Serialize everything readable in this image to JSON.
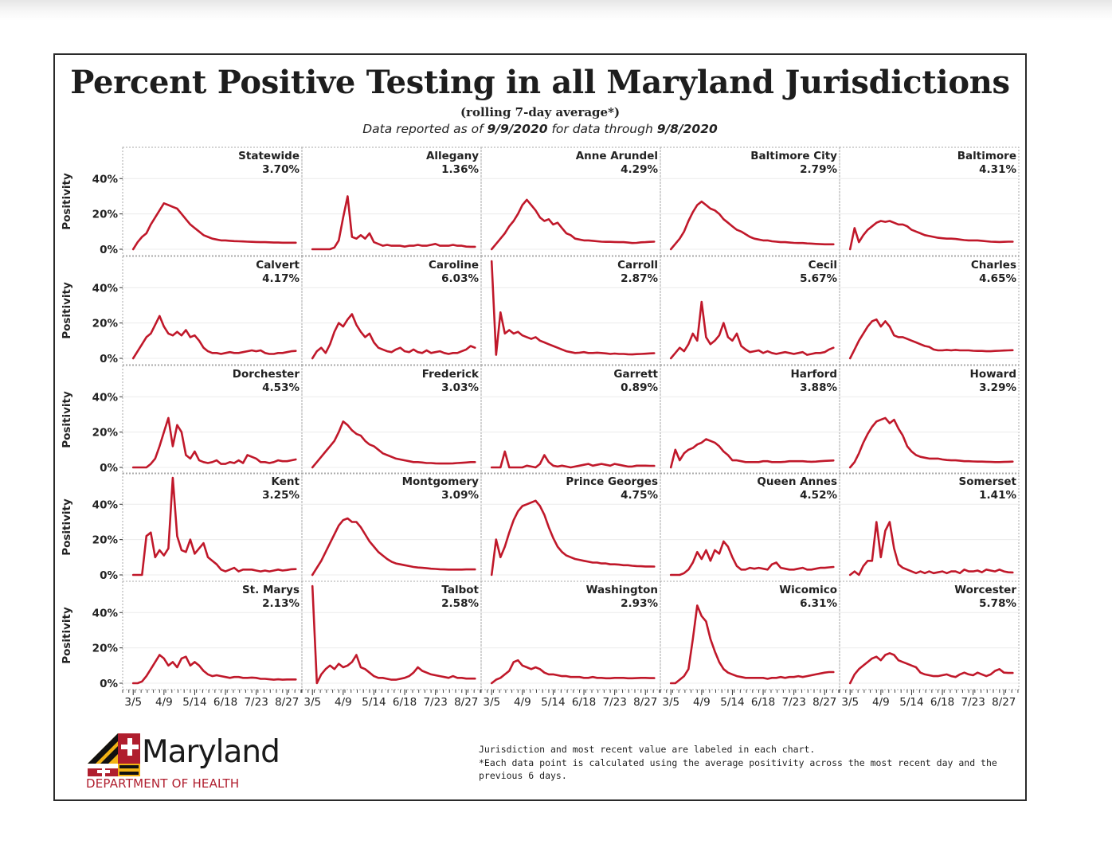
{
  "header": {
    "title": "Percent Positive Testing in all Maryland Jurisdictions",
    "subtitle": "(rolling 7-day average*)",
    "dateline_prefix": "Data reported as of ",
    "reported_date": "9/9/2020",
    "dateline_mid": " for data through ",
    "through_date": "9/8/2020"
  },
  "footer": {
    "logo_word": "Maryland",
    "logo_department": "DEPARTMENT OF HEALTH",
    "note_1": "Jurisdiction and most recent value are labeled in each chart.",
    "note_2": "*Each data point is calculated using the average positivity across the most recent day and the",
    "note_3": "previous 6 days."
  },
  "colors": {
    "line": "#c0182a",
    "brand_red": "#b01e2e",
    "brand_gold": "#f2b315"
  },
  "chart_data": {
    "type": "line",
    "ylabel": "Positivity",
    "y_ticks": [
      "0%",
      "20%",
      "40%"
    ],
    "y_tick_values": [
      0,
      20,
      40
    ],
    "ylim": [
      0,
      55
    ],
    "x_ticks": [
      "3/5",
      "4/9",
      "5/14",
      "6/18",
      "7/23",
      "8/27"
    ],
    "x_tick_days": [
      0,
      35,
      70,
      105,
      140,
      175
    ],
    "xlim": [
      -12,
      192
    ],
    "grid": true,
    "x": [
      0,
      5,
      10,
      15,
      20,
      25,
      30,
      35,
      40,
      45,
      50,
      55,
      60,
      65,
      70,
      75,
      80,
      85,
      90,
      95,
      100,
      105,
      110,
      115,
      120,
      125,
      130,
      135,
      140,
      145,
      150,
      155,
      160,
      165,
      170,
      175,
      180,
      185
    ],
    "panels": [
      {
        "name": "Statewide",
        "latest": "3.70%",
        "values": [
          0,
          4,
          7,
          9,
          14,
          18,
          22,
          26,
          25,
          24,
          23,
          20,
          17,
          14,
          12,
          10,
          8,
          7,
          6,
          5.5,
          5,
          5,
          4.8,
          4.6,
          4.5,
          4.4,
          4.3,
          4.2,
          4.1,
          4,
          4,
          3.9,
          3.8,
          3.8,
          3.7,
          3.7,
          3.7,
          3.7
        ]
      },
      {
        "name": "Allegany",
        "latest": "1.36%",
        "values": [
          0,
          0,
          0,
          0,
          0,
          1,
          5,
          18,
          30,
          7,
          6,
          8,
          6,
          9,
          4,
          3,
          2,
          2.5,
          2,
          2,
          2,
          1.5,
          2,
          2,
          2.5,
          2,
          2,
          2.5,
          3,
          2,
          2,
          2,
          2.5,
          2,
          2,
          1.5,
          1.4,
          1.4
        ]
      },
      {
        "name": "Anne Arundel",
        "latest": "4.29%",
        "values": [
          0,
          3,
          6,
          9,
          13,
          16,
          20,
          25,
          28,
          25,
          22,
          18,
          16,
          17,
          14,
          15,
          12,
          9,
          8,
          6,
          5.5,
          5,
          5,
          4.8,
          4.5,
          4.3,
          4.2,
          4.2,
          4.1,
          4,
          4,
          3.8,
          3.5,
          3.6,
          3.9,
          4,
          4.2,
          4.3
        ]
      },
      {
        "name": "Baltimore City",
        "latest": "2.79%",
        "values": [
          0,
          3,
          6,
          10,
          16,
          21,
          25,
          27,
          25,
          23,
          22,
          20,
          17,
          15,
          13,
          11,
          10,
          8.5,
          7,
          6,
          5.5,
          5,
          5,
          4.5,
          4.3,
          4,
          4,
          3.8,
          3.6,
          3.5,
          3.5,
          3.3,
          3.2,
          3,
          2.9,
          2.8,
          2.8,
          2.8
        ]
      },
      {
        "name": "Baltimore",
        "latest": "4.31%",
        "values": [
          0,
          12,
          4,
          8,
          11,
          13,
          15,
          16,
          15.5,
          16,
          15,
          14,
          14,
          13,
          11,
          10,
          9,
          8,
          7.5,
          7,
          6.5,
          6.2,
          6,
          6,
          5.8,
          5.5,
          5.2,
          5,
          5,
          5,
          4.8,
          4.5,
          4.3,
          4.2,
          4.1,
          4.2,
          4.3,
          4.3
        ]
      },
      {
        "name": "Calvert",
        "latest": "4.17%",
        "values": [
          0,
          4,
          8,
          12,
          14,
          19,
          24,
          18,
          14,
          13,
          15,
          13,
          16,
          12,
          13,
          10,
          6,
          4,
          3,
          3,
          2.5,
          3,
          3.5,
          3,
          3,
          3.5,
          4,
          4.5,
          4,
          4.5,
          3,
          2.5,
          2.5,
          3,
          3,
          3.5,
          4,
          4.2
        ]
      },
      {
        "name": "Caroline",
        "latest": "6.03%",
        "values": [
          0,
          4,
          6,
          3,
          8,
          15,
          20,
          18,
          22,
          25,
          19,
          15,
          12,
          14,
          9,
          6,
          5,
          4,
          3.5,
          5,
          6,
          4,
          3.5,
          5,
          3.5,
          3,
          4.5,
          3,
          3.5,
          4,
          3,
          2.5,
          3,
          3,
          4,
          5,
          7,
          6
        ]
      },
      {
        "name": "Carroll",
        "latest": "2.87%",
        "values": [
          55,
          2,
          26,
          14,
          16,
          14,
          15,
          13,
          12,
          11,
          12,
          10,
          9,
          8,
          7,
          6,
          5,
          4,
          3.5,
          3,
          3.2,
          3.5,
          3,
          3,
          3.2,
          3,
          2.8,
          2.5,
          2.7,
          2.5,
          2.5,
          2.3,
          2.2,
          2.4,
          2.5,
          2.6,
          2.8,
          2.9
        ]
      },
      {
        "name": "Cecil",
        "latest": "5.67%",
        "values": [
          0,
          3,
          6,
          4,
          8,
          14,
          10,
          32,
          12,
          8,
          10,
          13,
          20,
          12,
          10,
          14,
          7,
          5,
          3.5,
          4,
          4.5,
          3,
          4,
          3,
          2.5,
          3,
          3.5,
          3,
          2.5,
          3,
          3.5,
          2,
          2.5,
          3,
          3,
          3.5,
          5,
          6
        ]
      },
      {
        "name": "Charles",
        "latest": "4.65%",
        "values": [
          0,
          5,
          10,
          14,
          18,
          21,
          22,
          18,
          21,
          18,
          13,
          12,
          12,
          11,
          10,
          9,
          8,
          7,
          6.5,
          5,
          4.5,
          4.5,
          4.8,
          4.5,
          4.8,
          4.5,
          4.5,
          4.5,
          4.3,
          4.2,
          4.2,
          4,
          4,
          4.2,
          4.3,
          4.4,
          4.5,
          4.6
        ]
      },
      {
        "name": "Dorchester",
        "latest": "4.53%",
        "values": [
          0,
          0,
          0,
          0,
          2,
          5,
          12,
          20,
          28,
          12,
          24,
          20,
          7,
          5,
          9,
          4,
          3,
          2.5,
          3,
          4,
          2,
          2,
          3,
          2.5,
          4,
          2.5,
          7,
          6,
          5,
          3,
          3,
          2.5,
          3,
          4,
          3.5,
          3.5,
          4,
          4.5
        ]
      },
      {
        "name": "Frederick",
        "latest": "3.03%",
        "values": [
          0,
          3,
          6,
          9,
          12,
          15,
          20,
          26,
          24,
          21,
          19,
          18,
          15,
          13,
          12,
          10,
          8,
          7,
          6,
          5,
          4.5,
          4,
          3.5,
          3,
          3,
          2.8,
          2.5,
          2.5,
          2.3,
          2.2,
          2.2,
          2.2,
          2.3,
          2.5,
          2.6,
          2.8,
          3,
          3
        ]
      },
      {
        "name": "Garrett",
        "latest": "0.89%",
        "values": [
          0,
          0,
          0,
          9,
          0,
          0,
          0,
          0,
          1,
          0.5,
          0,
          2,
          7,
          3,
          1,
          0.5,
          1,
          0.5,
          0,
          0.5,
          1,
          1.5,
          2,
          1,
          1.5,
          2,
          1.5,
          1,
          2,
          1.5,
          1,
          0.5,
          0.5,
          1,
          1,
          1,
          0.9,
          0.9
        ]
      },
      {
        "name": "Harford",
        "latest": "3.88%",
        "values": [
          0,
          10,
          4,
          8,
          10,
          11,
          13,
          14,
          16,
          15,
          14,
          12,
          9,
          7,
          4,
          4,
          3.5,
          3,
          3,
          3,
          3,
          3.5,
          3.5,
          3,
          3,
          3,
          3.2,
          3.5,
          3.5,
          3.5,
          3.5,
          3.3,
          3.2,
          3.3,
          3.5,
          3.7,
          3.8,
          3.9
        ]
      },
      {
        "name": "Howard",
        "latest": "3.29%",
        "values": [
          0,
          3,
          8,
          14,
          19,
          23,
          26,
          27,
          28,
          25,
          27,
          22,
          18,
          12,
          9,
          7,
          6,
          5.5,
          5,
          5,
          5,
          4.5,
          4.2,
          4,
          4,
          3.8,
          3.5,
          3.5,
          3.4,
          3.3,
          3.3,
          3.2,
          3.1,
          3,
          3,
          3.1,
          3.2,
          3.3
        ]
      },
      {
        "name": "Kent",
        "latest": "3.25%",
        "values": [
          0,
          0,
          0,
          22,
          24,
          10,
          14,
          11,
          15,
          55,
          22,
          14,
          13,
          20,
          12,
          15,
          18,
          10,
          8,
          6,
          3,
          2,
          3,
          4,
          2,
          3,
          3,
          3,
          2.5,
          2,
          2.5,
          2,
          2.5,
          3,
          2.5,
          2.8,
          3.2,
          3.3
        ]
      },
      {
        "name": "Montgomery",
        "latest": "3.09%",
        "values": [
          0,
          4,
          8,
          13,
          18,
          23,
          28,
          31,
          32,
          30,
          30,
          27,
          23,
          19,
          16,
          13,
          11,
          9,
          7.5,
          6.5,
          6,
          5.5,
          5,
          4.5,
          4.2,
          4,
          3.8,
          3.5,
          3.4,
          3.2,
          3.1,
          3,
          3,
          3,
          3,
          3.1,
          3.1,
          3.1
        ]
      },
      {
        "name": "Prince Georges",
        "latest": "4.75%",
        "values": [
          0,
          20,
          10,
          16,
          24,
          31,
          36,
          39,
          40,
          41,
          42,
          39,
          34,
          27,
          21,
          16,
          13,
          11,
          10,
          9,
          8.5,
          8,
          7.5,
          7,
          7,
          6.5,
          6.5,
          6,
          6,
          5.8,
          5.5,
          5.5,
          5.2,
          5,
          4.9,
          4.8,
          4.8,
          4.75
        ]
      },
      {
        "name": "Queen Annes",
        "latest": "4.52%",
        "values": [
          0,
          0,
          0,
          1,
          3,
          7,
          13,
          9,
          14,
          8,
          14,
          12,
          19,
          16,
          10,
          5,
          3,
          3,
          4,
          3.5,
          4,
          3.5,
          3,
          6,
          7,
          4,
          3.5,
          3,
          3,
          3.5,
          4,
          3,
          3,
          3.5,
          4,
          4,
          4.3,
          4.5
        ]
      },
      {
        "name": "Somerset",
        "latest": "1.41%",
        "values": [
          0,
          2,
          0,
          5,
          8,
          8,
          30,
          10,
          25,
          30,
          15,
          6,
          4,
          3,
          2,
          1,
          2,
          1,
          2,
          1,
          1.5,
          2,
          1,
          2,
          2,
          1,
          3,
          2,
          2,
          2.5,
          1.5,
          3,
          2.5,
          2,
          3,
          2,
          1.5,
          1.4
        ]
      },
      {
        "name": "St. Marys",
        "latest": "2.13%",
        "values": [
          0,
          0,
          1,
          4,
          8,
          12,
          16,
          14,
          10,
          12,
          9,
          14,
          15,
          10,
          12,
          10,
          7,
          5,
          4,
          4.5,
          4,
          3.5,
          3,
          3.5,
          3.5,
          3,
          3,
          3.2,
          3,
          2.5,
          2.5,
          2.2,
          2,
          2.2,
          2,
          2.1,
          2.1,
          2.1
        ]
      },
      {
        "name": "Talbot",
        "latest": "2.58%",
        "values": [
          55,
          0,
          5,
          8,
          10,
          8,
          11,
          9,
          10,
          12,
          16,
          9,
          8,
          6,
          4,
          3,
          3,
          2.5,
          2,
          2,
          2.5,
          3,
          4,
          6,
          9,
          7,
          6,
          5,
          4.5,
          4,
          3.5,
          3,
          4,
          3,
          3,
          2.6,
          2.6,
          2.6
        ]
      },
      {
        "name": "Washington",
        "latest": "2.93%",
        "values": [
          0,
          2,
          3,
          5,
          7,
          12,
          13,
          10,
          9,
          8,
          9,
          8,
          6,
          5,
          5,
          4.5,
          4,
          4,
          3.5,
          3.5,
          3.5,
          3,
          3,
          3.5,
          3,
          3,
          2.8,
          2.8,
          3,
          3,
          3,
          2.8,
          2.8,
          2.9,
          3,
          3,
          2.9,
          2.9
        ]
      },
      {
        "name": "Wicomico",
        "latest": "6.31%",
        "values": [
          0,
          0,
          2,
          4,
          8,
          25,
          44,
          38,
          35,
          25,
          18,
          12,
          8,
          6,
          5,
          4,
          3.5,
          3,
          3,
          3,
          3,
          3,
          2.5,
          3,
          3,
          3.5,
          3,
          3.5,
          3.5,
          4,
          3.5,
          4,
          4.5,
          5,
          5.5,
          6,
          6.3,
          6.3
        ]
      },
      {
        "name": "Worcester",
        "latest": "5.78%",
        "values": [
          0,
          5,
          8,
          10,
          12,
          14,
          15,
          13,
          16,
          17,
          16,
          13,
          12,
          11,
          10,
          9,
          6,
          5,
          4.5,
          4,
          4,
          4.5,
          5,
          4,
          3.5,
          5,
          6,
          5,
          4.5,
          6,
          5,
          4,
          5,
          7,
          8,
          6,
          5.8,
          5.8
        ]
      }
    ]
  }
}
